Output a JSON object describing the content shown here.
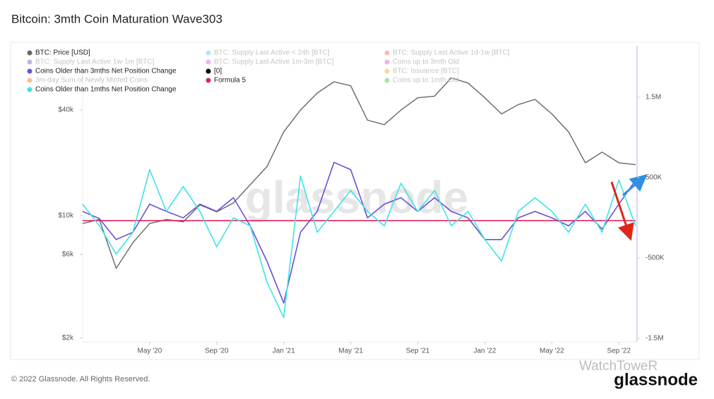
{
  "chart_data": {
    "type": "line",
    "title": "Bitcoin: 3mth Coin Maturation Wave303",
    "watermark": "glassnode",
    "copyright": "© 2022 Glassnode. All Rights Reserved.",
    "brand": "glassnode",
    "source_watermark": "WatchToweR",
    "x": [
      "2020-01",
      "2020-02",
      "2020-03",
      "2020-04",
      "2020-05",
      "2020-06",
      "2020-07",
      "2020-08",
      "2020-09",
      "2020-10",
      "2020-11",
      "2020-12",
      "2021-01",
      "2021-02",
      "2021-03",
      "2021-04",
      "2021-05",
      "2021-06",
      "2021-07",
      "2021-08",
      "2021-09",
      "2021-10",
      "2021-11",
      "2021-12",
      "2022-01",
      "2022-02",
      "2022-03",
      "2022-04",
      "2022-05",
      "2022-06",
      "2022-07",
      "2022-08",
      "2022-09",
      "2022-10"
    ],
    "xlim": [
      "2020-01",
      "2022-10"
    ],
    "xticks": [
      {
        "value": "2020-05",
        "label": "May '20"
      },
      {
        "value": "2020-09",
        "label": "Sep '20"
      },
      {
        "value": "2021-01",
        "label": "Jan '21"
      },
      {
        "value": "2021-05",
        "label": "May '21"
      },
      {
        "value": "2021-09",
        "label": "Sep '21"
      },
      {
        "value": "2022-01",
        "label": "Jan '22"
      },
      {
        "value": "2022-05",
        "label": "May '22"
      },
      {
        "value": "2022-09",
        "label": "Sep '22"
      }
    ],
    "ylim": [
      1900,
      93000
    ],
    "log_scale": true,
    "yticks": [
      {
        "value": 2000,
        "label": "$2k"
      },
      {
        "value": 6000,
        "label": "$6k"
      },
      {
        "value": 10000,
        "label": "$10k"
      },
      {
        "value": 40000,
        "label": "$40k"
      }
    ],
    "y2lim": [
      -1544000,
      2140000
    ],
    "y2ticks": [
      {
        "value": -1500000,
        "label": "-1.5M"
      },
      {
        "value": -500000,
        "label": "-500K"
      },
      {
        "value": 500000,
        "label": "500K"
      },
      {
        "value": 1500000,
        "label": "1.5M"
      }
    ],
    "grid": false,
    "series": [
      {
        "name": "BTC: Price [USD]",
        "color": "#666666",
        "axis": "y",
        "values": [
          9000,
          9500,
          5000,
          7000,
          9000,
          9500,
          9200,
          11500,
          10500,
          11800,
          15000,
          19000,
          30000,
          40000,
          50000,
          58000,
          55000,
          35000,
          33000,
          40000,
          47000,
          48000,
          61000,
          57000,
          47000,
          38000,
          43000,
          46000,
          38000,
          30000,
          20000,
          23000,
          20000,
          19500
        ]
      },
      {
        "name": "BTC: Supply Last Active < 24h [BTC]",
        "color": "#4dd0e1",
        "faded": true
      },
      {
        "name": "BTC: Supply Last Active 1d-1w [BTC]",
        "color": "#e5734f",
        "faded": true
      },
      {
        "name": "BTC: Supply Last Active 1w-1m [BTC]",
        "color": "#7e57c2",
        "faded": true
      },
      {
        "name": "BTC: Supply Last Active 1m-3m [BTC]",
        "color": "#d05ce3",
        "faded": true
      },
      {
        "name": "Coins up to 3mth Old",
        "color": "#d65db1",
        "faded": true
      },
      {
        "name": "Coins Older than 3mths Net Position Change",
        "color": "#6b4fd8",
        "axis": "y2",
        "values": [
          80000,
          -10000,
          -270000,
          -180000,
          170000,
          80000,
          0,
          170000,
          80000,
          250000,
          -100000,
          -540000,
          -1060000,
          -180000,
          80000,
          690000,
          600000,
          0,
          170000,
          250000,
          80000,
          250000,
          80000,
          0,
          -270000,
          -270000,
          0,
          80000,
          0,
          -100000,
          80000,
          -140000,
          170000,
          470000
        ]
      },
      {
        "name": "[0]",
        "color": "#000000"
      },
      {
        "name": "BTC: Issuance [BTC]",
        "color": "#f5a623",
        "faded": true
      },
      {
        "name": "3m-day Sum of Newly Minted Coins",
        "color": "#ff6d00",
        "faded": true
      },
      {
        "name": "Formula 5",
        "color": "#e0245e",
        "axis": "y2",
        "value": -35000
      },
      {
        "name": "Coins up to 1mth Old",
        "color": "#2ecc40",
        "faded": true
      },
      {
        "name": "Coins Older than 1mths Net Position Change",
        "color": "#3fe3e8",
        "axis": "y2",
        "values": [
          170000,
          -100000,
          -450000,
          -180000,
          600000,
          80000,
          390000,
          80000,
          -360000,
          0,
          -100000,
          -800000,
          -1240000,
          520000,
          -180000,
          80000,
          340000,
          80000,
          -100000,
          430000,
          80000,
          340000,
          -100000,
          80000,
          -270000,
          -540000,
          80000,
          250000,
          80000,
          -180000,
          170000,
          -180000,
          470000,
          -100000
        ]
      }
    ]
  }
}
